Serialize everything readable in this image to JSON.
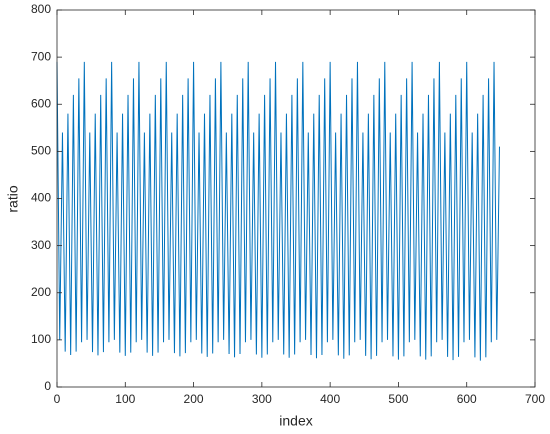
{
  "chart_data": {
    "type": "line",
    "xlabel": "index",
    "ylabel": "ratio",
    "xlim": [
      0,
      700
    ],
    "xticks": [
      0,
      100,
      200,
      300,
      400,
      500,
      600,
      700
    ],
    "ylim": [
      0,
      800
    ],
    "yticks": [
      0,
      100,
      200,
      300,
      400,
      500,
      600,
      700,
      800
    ],
    "color": "#0072bd",
    "x": [
      0,
      4,
      8,
      12,
      16,
      20,
      24,
      28,
      32,
      36,
      40,
      44,
      48,
      52,
      56,
      60,
      64,
      68,
      72,
      76,
      80,
      84,
      88,
      92,
      96,
      100,
      104,
      108,
      112,
      116,
      120,
      124,
      128,
      132,
      136,
      140,
      144,
      148,
      152,
      156,
      160,
      164,
      168,
      172,
      176,
      180,
      184,
      188,
      192,
      196,
      200,
      204,
      208,
      212,
      216,
      220,
      224,
      228,
      232,
      236,
      240,
      244,
      248,
      252,
      256,
      260,
      264,
      268,
      272,
      276,
      280,
      284,
      288,
      292,
      296,
      300,
      304,
      308,
      312,
      316,
      320,
      324,
      328,
      332,
      336,
      340,
      344,
      348,
      352,
      356,
      360,
      364,
      368,
      372,
      376,
      380,
      384,
      388,
      392,
      396,
      400,
      404,
      408,
      412,
      416,
      420,
      424,
      428,
      432,
      436,
      440,
      444,
      448,
      452,
      456,
      460,
      464,
      468,
      472,
      476,
      480,
      484,
      488,
      492,
      496,
      500,
      504,
      508,
      512,
      516,
      520,
      524,
      528,
      532,
      536,
      540,
      544,
      548,
      552,
      556,
      560,
      564,
      568,
      572,
      576,
      580,
      584,
      588,
      592,
      596,
      600,
      604,
      608,
      612,
      616,
      620,
      624,
      628,
      632,
      636,
      640,
      644,
      648
    ],
    "values": [
      690,
      100,
      540,
      75,
      580,
      68,
      620,
      75,
      655,
      95,
      690,
      100,
      540,
      74,
      580,
      67,
      620,
      74,
      655,
      95,
      690,
      100,
      540,
      73,
      580,
      66,
      620,
      73,
      655,
      95,
      690,
      100,
      540,
      73,
      580,
      66,
      620,
      73,
      655,
      95,
      690,
      100,
      540,
      72,
      580,
      65,
      620,
      72,
      655,
      95,
      690,
      100,
      540,
      71,
      580,
      64,
      620,
      71,
      655,
      95,
      690,
      100,
      540,
      70,
      580,
      63,
      620,
      70,
      655,
      95,
      690,
      100,
      540,
      69,
      580,
      62,
      620,
      69,
      655,
      95,
      690,
      100,
      540,
      69,
      580,
      62,
      620,
      69,
      655,
      95,
      690,
      100,
      540,
      68,
      580,
      61,
      620,
      68,
      655,
      95,
      690,
      100,
      540,
      67,
      580,
      60,
      620,
      67,
      655,
      95,
      690,
      100,
      540,
      66,
      580,
      59,
      620,
      66,
      655,
      95,
      690,
      100,
      540,
      65,
      580,
      58,
      620,
      65,
      655,
      95,
      690,
      100,
      540,
      65,
      580,
      58,
      620,
      65,
      655,
      95,
      690,
      100,
      540,
      64,
      580,
      57,
      620,
      64,
      655,
      95,
      690,
      100,
      540,
      63,
      580,
      56,
      620,
      63,
      655,
      95,
      690,
      100,
      510
    ]
  }
}
